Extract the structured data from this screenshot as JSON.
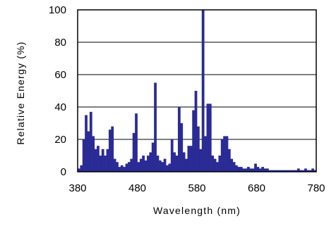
{
  "chart_data": {
    "type": "bar",
    "title": "",
    "xlabel": "Wavelength (nm)",
    "ylabel": "Relative Energy (%)",
    "xlim": [
      380,
      780
    ],
    "ylim": [
      0,
      100
    ],
    "x_ticks": [
      "380",
      "480",
      "580",
      "680",
      "780"
    ],
    "y_ticks": [
      "0",
      "20",
      "40",
      "60",
      "80",
      "100"
    ],
    "grid": "horizontal",
    "legend": "none",
    "color": "#2b2b96",
    "x": [
      380,
      384,
      388,
      392,
      396,
      400,
      404,
      408,
      412,
      416,
      420,
      424,
      428,
      432,
      436,
      440,
      444,
      448,
      452,
      456,
      460,
      464,
      468,
      472,
      476,
      480,
      484,
      488,
      492,
      496,
      500,
      504,
      508,
      512,
      516,
      520,
      524,
      528,
      532,
      536,
      540,
      544,
      548,
      552,
      556,
      560,
      564,
      568,
      572,
      576,
      580,
      584,
      588,
      592,
      596,
      600,
      604,
      608,
      612,
      616,
      620,
      624,
      628,
      632,
      636,
      640,
      644,
      648,
      652,
      656,
      660,
      664,
      668,
      672,
      676,
      680,
      684,
      688,
      692,
      696,
      700,
      704,
      708,
      712,
      716,
      720,
      724,
      728,
      732,
      736,
      740,
      744,
      748,
      752,
      756,
      760,
      764,
      768,
      772,
      776
    ],
    "values": [
      2,
      4,
      20,
      35,
      25,
      37,
      22,
      14,
      16,
      10,
      14,
      10,
      14,
      26,
      28,
      8,
      6,
      3,
      4,
      3,
      5,
      6,
      8,
      24,
      36,
      6,
      8,
      10,
      7,
      10,
      12,
      18,
      55,
      10,
      7,
      6,
      8,
      4,
      5,
      20,
      12,
      10,
      40,
      30,
      12,
      8,
      16,
      16,
      38,
      50,
      28,
      14,
      100,
      22,
      42,
      42,
      10,
      8,
      6,
      10,
      20,
      22,
      22,
      14,
      8,
      6,
      4,
      3,
      3,
      2,
      2,
      3,
      2,
      2,
      5,
      3,
      2,
      3,
      2,
      2,
      1,
      1,
      1,
      1,
      1,
      1,
      1,
      1,
      1,
      1,
      1,
      1,
      2,
      1,
      1,
      2,
      1,
      1,
      2,
      1
    ]
  }
}
